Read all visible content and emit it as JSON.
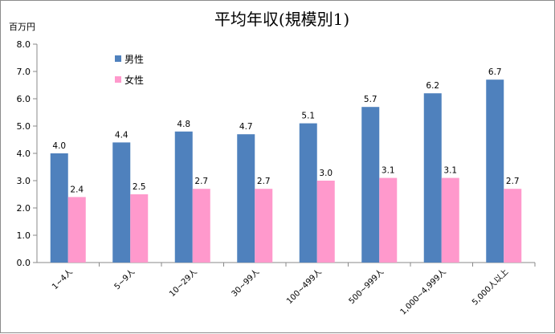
{
  "chart_data": {
    "type": "bar",
    "title": "平均年収(規模別1)",
    "unit_label": "百万円",
    "categories": [
      "1~4人",
      "5~9人",
      "10~29人",
      "30~99人",
      "100~499人",
      "500~999人",
      "1,000~4,999人",
      "5,000人以上"
    ],
    "series": [
      {
        "name": "男性",
        "color": "#4f81bd",
        "values": [
          4.0,
          4.4,
          4.8,
          4.7,
          5.1,
          5.7,
          6.2,
          6.7
        ]
      },
      {
        "name": "女性",
        "color": "#ff99cc",
        "values": [
          2.4,
          2.5,
          2.7,
          2.7,
          3.0,
          3.1,
          3.1,
          2.7
        ]
      }
    ],
    "ylim": [
      0,
      8
    ],
    "yticks": [
      "0.0",
      "1.0",
      "2.0",
      "3.0",
      "4.0",
      "5.0",
      "6.0",
      "7.0",
      "8.0"
    ],
    "legend_position": "top-left",
    "grid": false
  }
}
